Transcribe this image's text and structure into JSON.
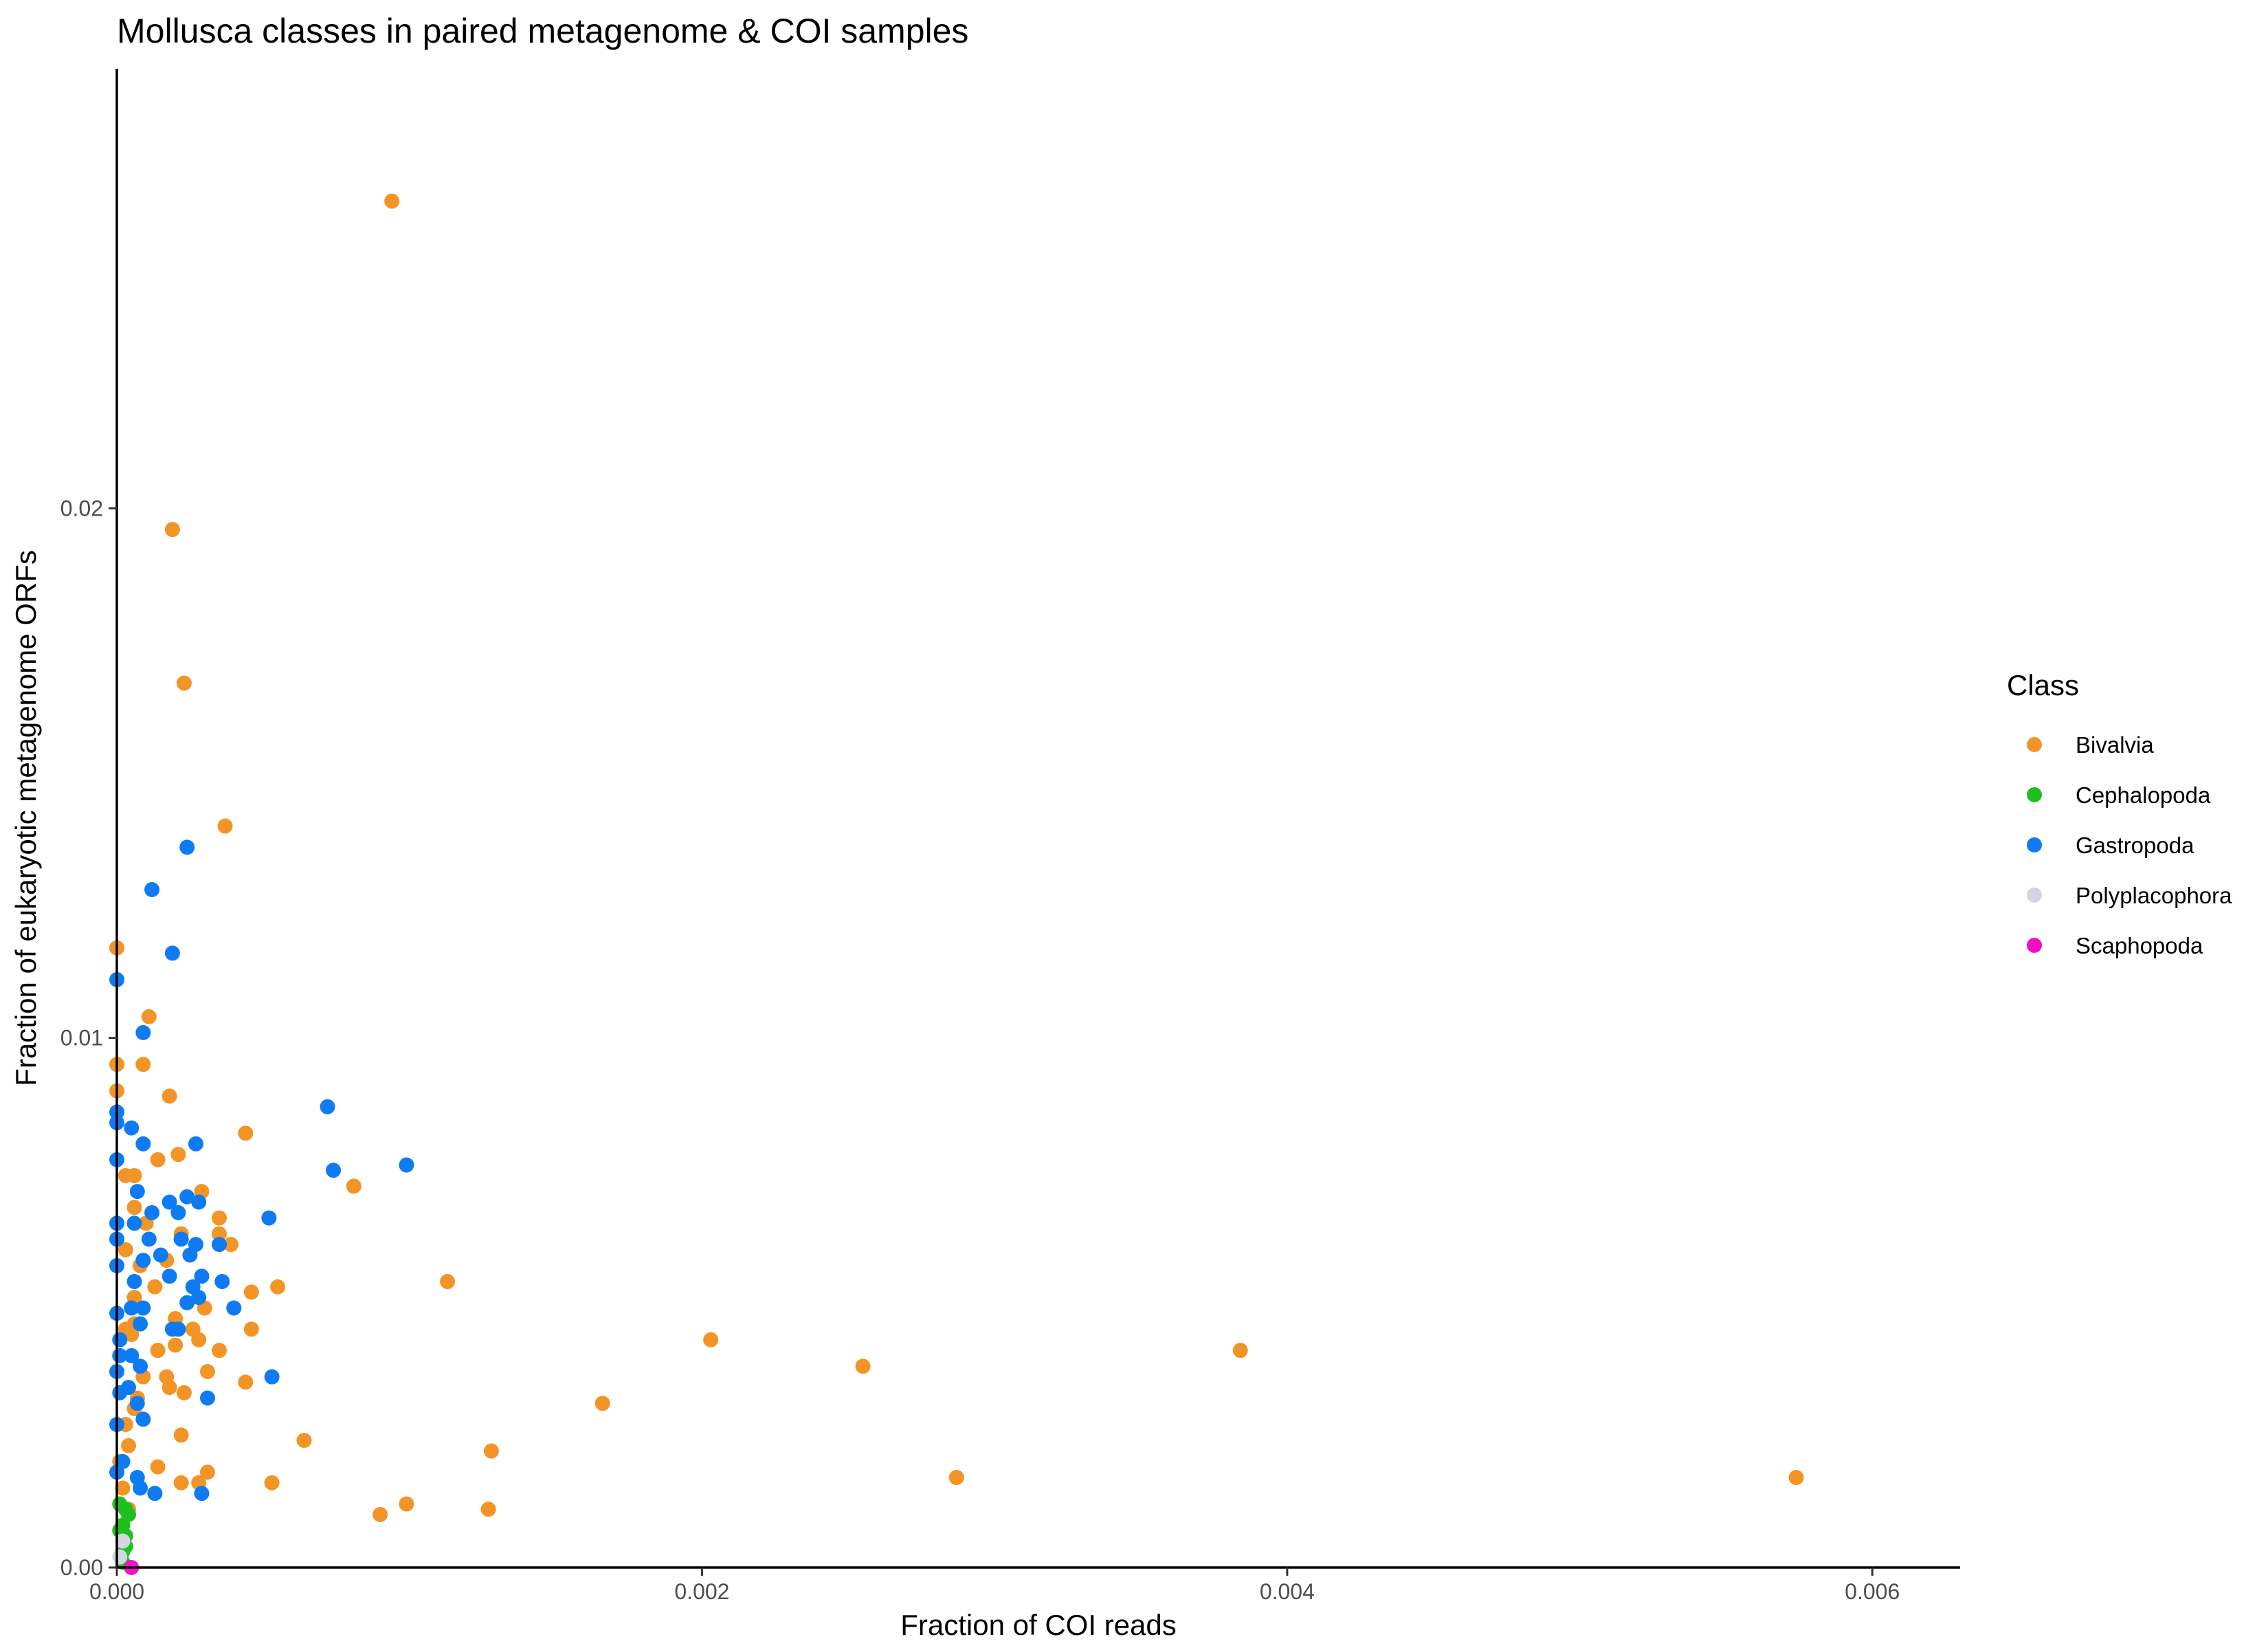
{
  "chart_data": {
    "type": "scatter",
    "title": "Mollusca classes in paired metagenome & COI samples",
    "xlabel": "Fraction of COI reads",
    "ylabel": "Fraction of eukaryotic metagenome ORFs",
    "xlim": [
      0,
      0.0063
    ],
    "ylim": [
      0,
      0.0283
    ],
    "x_ticks": [
      0,
      0.002,
      0.004,
      0.006
    ],
    "x_tick_labels": [
      "0.000",
      "0.002",
      "0.004",
      "0.006"
    ],
    "y_ticks": [
      0,
      0.01,
      0.02
    ],
    "y_tick_labels": [
      "0.00",
      "0.01",
      "0.02"
    ],
    "grid": false,
    "legend": {
      "title": "Class",
      "position": "right"
    },
    "series": [
      {
        "name": "Bivalvia",
        "color": "#F39426",
        "points": [
          [
            0.00094,
            0.0258
          ],
          [
            0.00019,
            0.0196
          ],
          [
            0.00023,
            0.0167
          ],
          [
            0.00037,
            0.014
          ],
          [
            0.0,
            0.0117
          ],
          [
            0.00011,
            0.0104
          ],
          [
            9e-05,
            0.0095
          ],
          [
            0.0,
            0.0095
          ],
          [
            0.0,
            0.009
          ],
          [
            0.00018,
            0.0089
          ],
          [
            0.00044,
            0.0082
          ],
          [
            0.00021,
            0.0078
          ],
          [
            0.00014,
            0.0077
          ],
          [
            3e-05,
            0.0074
          ],
          [
            6e-05,
            0.0074
          ],
          [
            0.00081,
            0.0072
          ],
          [
            0.00029,
            0.0071
          ],
          [
            6e-05,
            0.0068
          ],
          [
            0.00035,
            0.0066
          ],
          [
            0.0001,
            0.0065
          ],
          [
            0.00035,
            0.0063
          ],
          [
            0.00022,
            0.0063
          ],
          [
            0.00039,
            0.0061
          ],
          [
            3e-05,
            0.006
          ],
          [
            0.00017,
            0.0058
          ],
          [
            8e-05,
            0.0057
          ],
          [
            0.00113,
            0.0054
          ],
          [
            0.00055,
            0.0053
          ],
          [
            0.00013,
            0.0053
          ],
          [
            0.00046,
            0.0052
          ],
          [
            6e-05,
            0.0051
          ],
          [
            0.0003,
            0.0049
          ],
          [
            0.0002,
            0.0047
          ],
          [
            6e-05,
            0.0046
          ],
          [
            0.00026,
            0.0045
          ],
          [
            0.00046,
            0.0045
          ],
          [
            3e-05,
            0.0045
          ],
          [
            5e-05,
            0.0044
          ],
          [
            0.00028,
            0.0043
          ],
          [
            0.00203,
            0.0043
          ],
          [
            0.0002,
            0.0042
          ],
          [
            0.00014,
            0.0041
          ],
          [
            0.00035,
            0.0041
          ],
          [
            0.00384,
            0.0041
          ],
          [
            0.00255,
            0.0038
          ],
          [
            9e-05,
            0.0036
          ],
          [
            0.00017,
            0.0036
          ],
          [
            0.00031,
            0.0037
          ],
          [
            0.00044,
            0.0035
          ],
          [
            0.00018,
            0.0034
          ],
          [
            0.00023,
            0.0033
          ],
          [
            7e-05,
            0.0032
          ],
          [
            0.00166,
            0.0031
          ],
          [
            6e-05,
            0.003
          ],
          [
            3e-05,
            0.0027
          ],
          [
            0.00022,
            0.0025
          ],
          [
            0.00064,
            0.0024
          ],
          [
            4e-05,
            0.0023
          ],
          [
            0.00128,
            0.0022
          ],
          [
            0.00014,
            0.0019
          ],
          [
            0.00031,
            0.0018
          ],
          [
            0.00287,
            0.0017
          ],
          [
            0.00574,
            0.0017
          ],
          [
            0.00022,
            0.0016
          ],
          [
            0.00028,
            0.0016
          ],
          [
            0.00053,
            0.0016
          ],
          [
            0.00099,
            0.0012
          ],
          [
            0.00127,
            0.0011
          ],
          [
            0.0009,
            0.001
          ],
          [
            4e-05,
            0.0011
          ],
          [
            2e-05,
            0.0015
          ],
          [
            1e-05,
            0.002
          ]
        ]
      },
      {
        "name": "Cephalopoda",
        "color": "#1FBF1F",
        "points": [
          [
            2e-05,
            0.0008
          ],
          [
            3e-05,
            0.0011
          ],
          [
            1e-05,
            0.0012
          ],
          [
            3e-05,
            0.0006
          ],
          [
            2e-05,
            0.0003
          ],
          [
            2e-05,
            0.0001
          ],
          [
            4e-05,
            0.001
          ],
          [
            1e-05,
            0.0007
          ],
          [
            3e-05,
            0.0004
          ]
        ]
      },
      {
        "name": "Gastropoda",
        "color": "#0F7BF2",
        "points": [
          [
            0.00024,
            0.0136
          ],
          [
            0.00012,
            0.0128
          ],
          [
            0.00019,
            0.0116
          ],
          [
            0.0,
            0.0111
          ],
          [
            9e-05,
            0.0101
          ],
          [
            0.00072,
            0.0087
          ],
          [
            0.0,
            0.0086
          ],
          [
            0.0,
            0.0084
          ],
          [
            5e-05,
            0.0083
          ],
          [
            0.00027,
            0.008
          ],
          [
            9e-05,
            0.008
          ],
          [
            0.00099,
            0.0076
          ],
          [
            0.00074,
            0.0075
          ],
          [
            0.0,
            0.0077
          ],
          [
            7e-05,
            0.0071
          ],
          [
            0.00024,
            0.007
          ],
          [
            0.00018,
            0.0069
          ],
          [
            0.00028,
            0.0069
          ],
          [
            0.00052,
            0.0066
          ],
          [
            0.00021,
            0.0067
          ],
          [
            0.00012,
            0.0067
          ],
          [
            6e-05,
            0.0065
          ],
          [
            0.0,
            0.0065
          ],
          [
            0.00011,
            0.0062
          ],
          [
            0.00022,
            0.0062
          ],
          [
            0.00035,
            0.0061
          ],
          [
            0.00027,
            0.0061
          ],
          [
            0.00015,
            0.0059
          ],
          [
            0.00025,
            0.0059
          ],
          [
            9e-05,
            0.0058
          ],
          [
            0.0,
            0.0057
          ],
          [
            0.00029,
            0.0055
          ],
          [
            0.00018,
            0.0055
          ],
          [
            6e-05,
            0.0054
          ],
          [
            0.00036,
            0.0054
          ],
          [
            0.00026,
            0.0053
          ],
          [
            0.00028,
            0.0051
          ],
          [
            0.00024,
            0.005
          ],
          [
            9e-05,
            0.0049
          ],
          [
            5e-05,
            0.0049
          ],
          [
            0.0004,
            0.0049
          ],
          [
            0.0,
            0.0048
          ],
          [
            8e-05,
            0.0046
          ],
          [
            0.00019,
            0.0045
          ],
          [
            0.00021,
            0.0045
          ],
          [
            1e-05,
            0.0043
          ],
          [
            5e-05,
            0.004
          ],
          [
            8e-05,
            0.0038
          ],
          [
            0.0,
            0.0037
          ],
          [
            0.00053,
            0.0036
          ],
          [
            4e-05,
            0.0034
          ],
          [
            1e-05,
            0.0033
          ],
          [
            0.00031,
            0.0032
          ],
          [
            7e-05,
            0.0031
          ],
          [
            9e-05,
            0.0028
          ],
          [
            0.0,
            0.0027
          ],
          [
            2e-05,
            0.002
          ],
          [
            7e-05,
            0.0017
          ],
          [
            8e-05,
            0.0015
          ],
          [
            0.00013,
            0.0014
          ],
          [
            0.00029,
            0.0014
          ],
          [
            0.0,
            0.0018
          ],
          [
            1e-05,
            0.004
          ],
          [
            0.0,
            0.0062
          ]
        ]
      },
      {
        "name": "Polyplacophora",
        "color": "#D3D6E0",
        "points": [
          [
            1e-05,
            0.0002
          ],
          [
            2e-05,
            0.0005
          ]
        ]
      },
      {
        "name": "Scaphopoda",
        "color": "#F20FC4",
        "points": [
          [
            5e-05,
            0.0
          ]
        ]
      }
    ]
  }
}
